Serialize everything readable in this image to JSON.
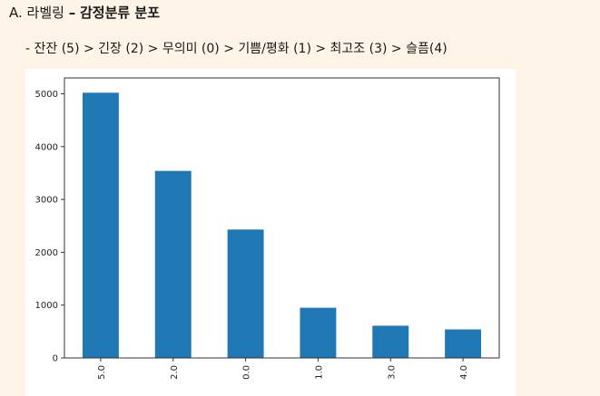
{
  "heading": {
    "prefix": "A. 라벨링",
    "dash": "–",
    "title": "감정분류 분포"
  },
  "subline": "- 잔잔 (5) > 긴장 (2) > 무의미 (0) > 기쁨/평화 (1) > 최고조 (3) > 슬픔(4)",
  "colors": {
    "bar": "#1f77b4",
    "page_bg": "#fdf3e7",
    "plot_bg": "#ffffff"
  },
  "chart_data": {
    "type": "bar",
    "categories": [
      "5.0",
      "2.0",
      "0.0",
      "1.0",
      "3.0",
      "4.0"
    ],
    "values": [
      5020,
      3540,
      2430,
      950,
      610,
      540
    ],
    "ylim": [
      0,
      5300
    ],
    "yticks": [
      0,
      1000,
      2000,
      3000,
      4000,
      5000
    ],
    "ytick_labels": [
      "0",
      "1000",
      "2000",
      "3000",
      "4000",
      "5000"
    ],
    "grid": false,
    "title": "",
    "xlabel": "",
    "ylabel": ""
  }
}
